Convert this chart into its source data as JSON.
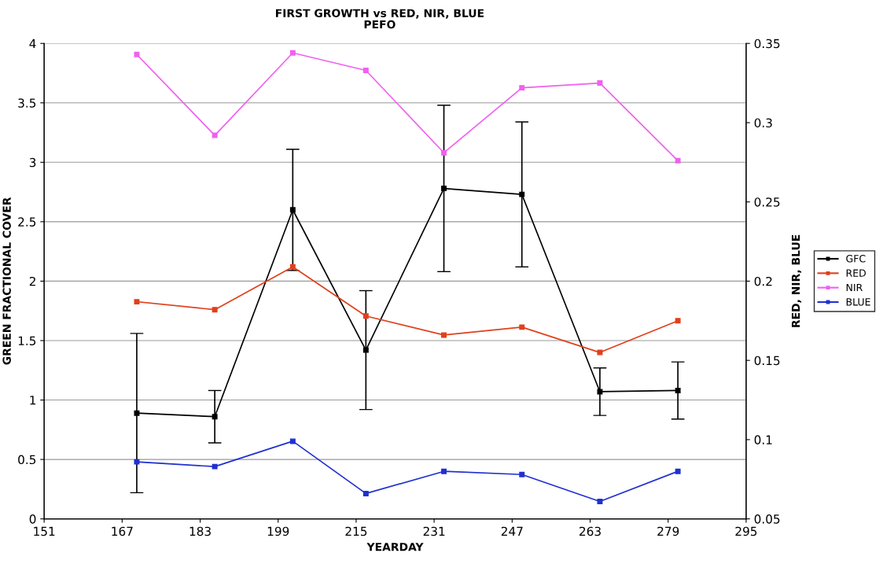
{
  "chart_data": {
    "type": "line",
    "title": "FIRST GROWTH vs RED, NIR, BLUE",
    "subtitle": "PEFO",
    "xlabel": "YEARDAY",
    "ylabel": "GREEN FRACTIONAL COVER",
    "y2label": "RED, NIR, BLUE",
    "x": [
      170,
      186,
      202,
      217,
      233,
      249,
      265,
      281
    ],
    "series": [
      {
        "name": "GFC",
        "color": "#000000",
        "values": [
          0.89,
          0.86,
          2.6,
          1.42,
          2.78,
          2.73,
          1.07,
          1.08
        ],
        "errors": [
          0.67,
          0.22,
          0.51,
          0.5,
          0.7,
          0.61,
          0.2,
          0.24
        ]
      },
      {
        "name": "RED",
        "color": "#e0401c",
        "axis": "y2",
        "values": [
          0.187,
          0.182,
          0.209,
          0.178,
          0.166,
          0.171,
          0.155,
          0.175
        ]
      },
      {
        "name": "NIR",
        "color": "#f060f0",
        "axis": "y2",
        "values": [
          0.343,
          0.292,
          0.344,
          0.333,
          0.281,
          0.322,
          0.325,
          0.276
        ]
      },
      {
        "name": "BLUE",
        "color": "#2030d0",
        "axis": "y2",
        "values": [
          0.086,
          0.083,
          0.099,
          0.066,
          0.08,
          0.078,
          0.061,
          0.08
        ]
      }
    ],
    "xlim": [
      151,
      295
    ],
    "xticks": [
      151,
      167,
      183,
      199,
      215,
      231,
      247,
      263,
      279,
      295
    ],
    "ylim": [
      0,
      4
    ],
    "yticks": [
      0,
      0.5,
      1,
      1.5,
      2,
      2.5,
      3,
      3.5,
      4
    ],
    "y2lim": [
      0.05,
      0.35
    ],
    "y2ticks": [
      0.05,
      0.1,
      0.15,
      0.2,
      0.25,
      0.3,
      0.35
    ],
    "grid": "y",
    "legend": "right",
    "marker": "square",
    "line_style": "solid"
  }
}
